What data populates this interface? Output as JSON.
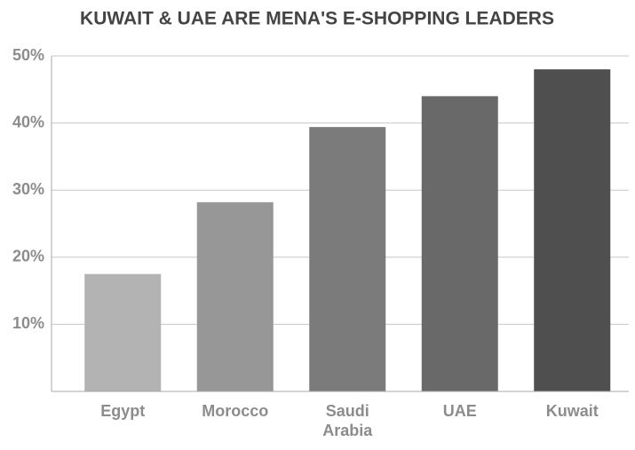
{
  "chart_data": {
    "type": "bar",
    "title": "KUWAIT & UAE ARE MENA'S E-SHOPPING LEADERS",
    "categories": [
      "Egypt",
      "Morocco",
      "Saudi Arabia",
      "UAE",
      "Kuwait"
    ],
    "values": [
      17.5,
      28.2,
      39.4,
      44,
      48
    ],
    "colors": [
      "#b3b3b3",
      "#979797",
      "#7b7b7b",
      "#696969",
      "#4f4f4f"
    ],
    "ylim": [
      0,
      50
    ],
    "yticks": [
      {
        "value": 10,
        "label": "10%"
      },
      {
        "value": 20,
        "label": "20%"
      },
      {
        "value": 30,
        "label": "30%"
      },
      {
        "value": 40,
        "label": "40%"
      },
      {
        "value": 50,
        "label": "50%"
      }
    ],
    "grid": true
  }
}
